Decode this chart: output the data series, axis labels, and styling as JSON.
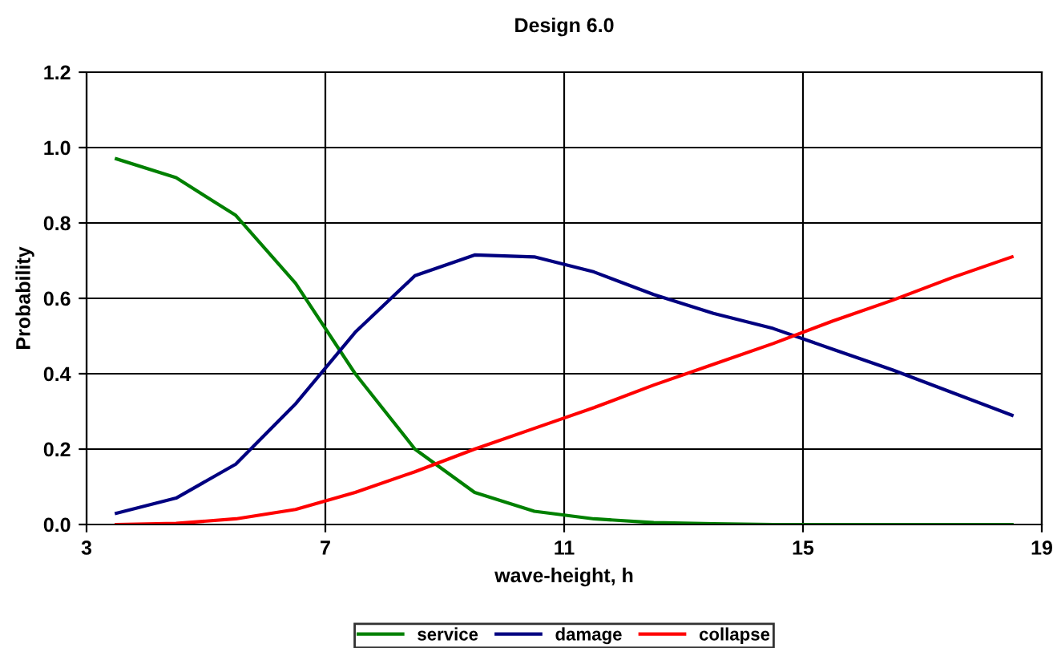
{
  "chart_data": {
    "type": "line",
    "title": "Design 6.0",
    "xlabel": "wave-height, h",
    "ylabel": "Probability",
    "x": [
      3.5,
      4.5,
      5.5,
      6.5,
      7.5,
      8.5,
      9.5,
      10.5,
      11.5,
      12.5,
      13.5,
      14.5,
      15.5,
      16.5,
      17.5,
      18.5
    ],
    "series": [
      {
        "name": "service",
        "color": "#008000",
        "values": [
          0.97,
          0.92,
          0.82,
          0.64,
          0.4,
          0.2,
          0.085,
          0.035,
          0.015,
          0.005,
          0.002,
          0,
          0,
          0,
          0,
          0
        ]
      },
      {
        "name": "damage",
        "color": "#000080",
        "values": [
          0.03,
          0.07,
          0.16,
          0.32,
          0.51,
          0.66,
          0.715,
          0.71,
          0.67,
          0.61,
          0.56,
          0.52,
          0.465,
          0.41,
          0.35,
          0.29
        ]
      },
      {
        "name": "collapse",
        "color": "#ff0000",
        "values": [
          0,
          0.003,
          0.015,
          0.04,
          0.085,
          0.14,
          0.2,
          0.255,
          0.31,
          0.37,
          0.425,
          0.48,
          0.54,
          0.595,
          0.655,
          0.71
        ]
      }
    ],
    "xlim": [
      3,
      19
    ],
    "xticks": [
      3,
      7,
      11,
      15,
      19
    ],
    "ylim": [
      0,
      1.2
    ],
    "yticks": [
      {
        "value": 0,
        "label": "0.0"
      },
      {
        "value": 0.2,
        "label": "0.2"
      },
      {
        "value": 0.4,
        "label": "0.4"
      },
      {
        "value": 0.6,
        "label": "0.6"
      },
      {
        "value": 0.8,
        "label": "0.8"
      },
      {
        "value": 1.0,
        "label": "1.0"
      },
      {
        "value": 1.2,
        "label": "1.2"
      }
    ],
    "grid": true,
    "legend": "bottom",
    "marker": "none",
    "line_style": "solid"
  }
}
